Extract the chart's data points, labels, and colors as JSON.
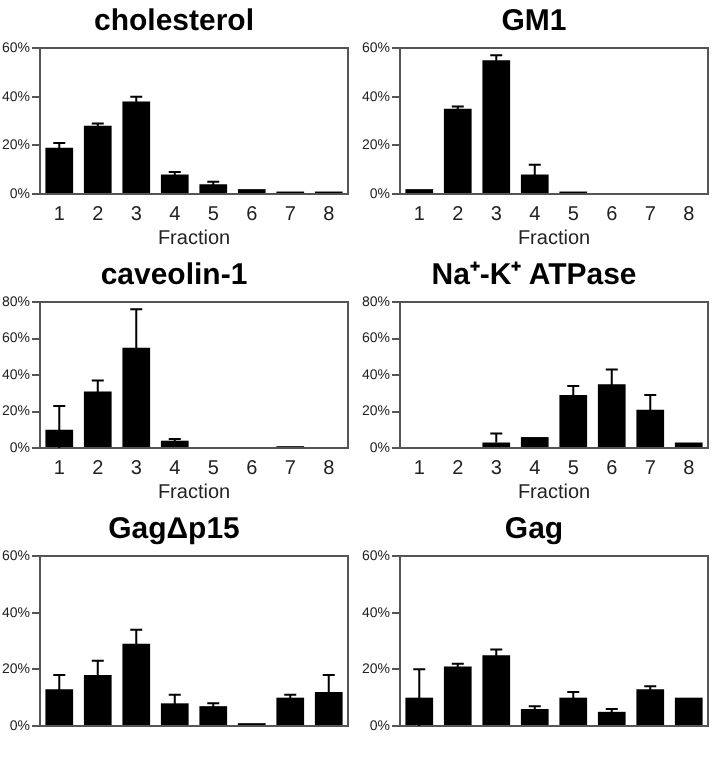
{
  "chart_data": [
    {
      "type": "bar",
      "title": "cholesterol",
      "xlabel": "Fraction",
      "categories": [
        "1",
        "2",
        "3",
        "4",
        "5",
        "6",
        "7",
        "8"
      ],
      "values": [
        19,
        28,
        38,
        8,
        4,
        2,
        1,
        1
      ],
      "errors": [
        2,
        1,
        2,
        1,
        1,
        null,
        null,
        null
      ],
      "color": "#000000",
      "ylim": [
        0,
        60
      ],
      "yticks": [
        {
          "value": 0,
          "label": "0%"
        },
        {
          "value": 20,
          "label": "20%"
        },
        {
          "value": 40,
          "label": "40%"
        },
        {
          "value": 60,
          "label": "60%"
        }
      ],
      "grid": false,
      "legend": false
    },
    {
      "type": "bar",
      "title": "GM1",
      "xlabel": "Fraction",
      "categories": [
        "1",
        "2",
        "3",
        "4",
        "5",
        "6",
        "7",
        "8"
      ],
      "values": [
        2,
        35,
        55,
        8,
        1,
        0,
        0,
        null
      ],
      "errors": [
        null,
        1,
        2,
        4,
        null,
        null,
        null,
        null
      ],
      "color": "#000000",
      "ylim": [
        0,
        60
      ],
      "yticks": [
        {
          "value": 0,
          "label": "0%"
        },
        {
          "value": 20,
          "label": "20%"
        },
        {
          "value": 40,
          "label": "40%"
        },
        {
          "value": 60,
          "label": "60%"
        }
      ],
      "grid": false,
      "legend": false
    },
    {
      "type": "bar",
      "title": "caveolin-1",
      "xlabel": "Fraction",
      "categories": [
        "1",
        "2",
        "3",
        "4",
        "5",
        "6",
        "7",
        "8"
      ],
      "values": [
        10,
        31,
        55,
        4,
        0,
        0,
        1,
        0
      ],
      "errors": [
        [
          0,
          23
        ],
        6,
        21,
        1,
        null,
        null,
        null,
        null
      ],
      "color": "#000000",
      "ylim": [
        0,
        80
      ],
      "yticks": [
        {
          "value": 0,
          "label": "0%"
        },
        {
          "value": 20,
          "label": "20%"
        },
        {
          "value": 40,
          "label": "40%"
        },
        {
          "value": 60,
          "label": "60%"
        },
        {
          "value": 80,
          "label": "80%"
        }
      ],
      "grid": false,
      "legend": false
    },
    {
      "type": "bar",
      "title": "Na⁺-K⁺ ATPase",
      "xlabel": "Fraction",
      "categories": [
        "1",
        "2",
        "3",
        "4",
        "5",
        "6",
        "7",
        "8"
      ],
      "values": [
        0,
        0,
        3,
        6,
        29,
        35,
        21,
        3
      ],
      "errors": [
        null,
        null,
        [
          3,
          8
        ],
        null,
        5,
        8,
        8,
        null
      ],
      "color": "#000000",
      "ylim": [
        0,
        80
      ],
      "yticks": [
        {
          "value": 0,
          "label": "0%"
        },
        {
          "value": 20,
          "label": "20%"
        },
        {
          "value": 40,
          "label": "40%"
        },
        {
          "value": 60,
          "label": "60%"
        },
        {
          "value": 80,
          "label": "80%"
        }
      ],
      "grid": false,
      "legend": false
    },
    {
      "type": "bar",
      "title": "GagΔp15",
      "categories": [
        null,
        null,
        null,
        null,
        null,
        null,
        null,
        null
      ],
      "values": [
        13,
        18,
        29,
        8,
        7,
        1,
        10,
        12
      ],
      "errors": [
        5,
        5,
        5,
        3,
        1,
        null,
        1,
        6
      ],
      "color": "#000000",
      "ylim": [
        0,
        60
      ],
      "yticks": [
        {
          "value": 0,
          "label": "0%"
        },
        {
          "value": 20,
          "label": "20%"
        },
        {
          "value": 40,
          "label": "40%"
        },
        {
          "value": 60,
          "label": "60%"
        }
      ],
      "grid": false,
      "legend": false
    },
    {
      "type": "bar",
      "title": "Gag",
      "categories": [
        null,
        null,
        null,
        null,
        null,
        null,
        null,
        null
      ],
      "values": [
        10,
        21,
        25,
        6,
        10,
        5,
        13,
        10
      ],
      "errors": [
        10,
        1,
        2,
        1,
        2,
        1,
        1,
        null
      ],
      "color": "#000000",
      "ylim": [
        0,
        60
      ],
      "yticks": [
        {
          "value": 0,
          "label": "0%"
        },
        {
          "value": 20,
          "label": "20%"
        },
        {
          "value": 40,
          "label": "40%"
        },
        {
          "value": 60,
          "label": "60%"
        }
      ],
      "grid": false,
      "legend": false
    }
  ]
}
